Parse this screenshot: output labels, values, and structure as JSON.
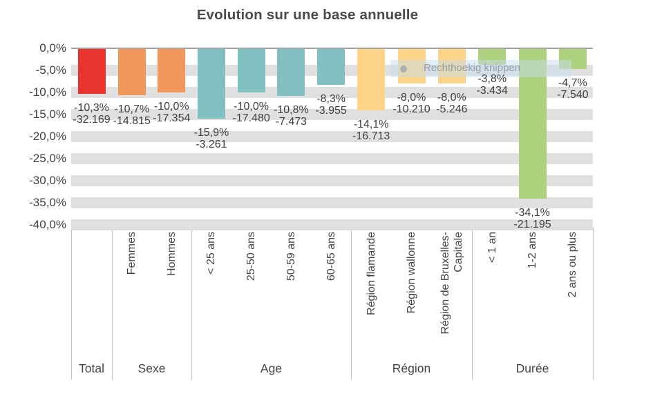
{
  "title": "Evolution sur une base annuelle",
  "overlay": {
    "text": "Rechthoekig knippen",
    "icon": "dot-icon"
  },
  "colors": {
    "total": "#e8342c",
    "sexe": "#f0975c",
    "age": "#81bfc1",
    "region": "#fbd389",
    "duree": "#aed17e",
    "grid_band": "#e0e0e0",
    "zero_line": "#a3a3a3",
    "separator": "#bfbfbf",
    "text": "#3d3d3d"
  },
  "chart_data": {
    "type": "bar",
    "title": "Evolution sur une base annuelle",
    "xlabel": "",
    "ylabel": "",
    "ylim": [
      -40,
      0
    ],
    "grid": "horizontal-bands",
    "legend": "none",
    "y_ticks": [
      {
        "value": 0,
        "label": "0,0%"
      },
      {
        "value": -5,
        "label": "-5,0%"
      },
      {
        "value": -10,
        "label": "-10,0%"
      },
      {
        "value": -15,
        "label": "-15,0%"
      },
      {
        "value": -20,
        "label": "-20,0%"
      },
      {
        "value": -25,
        "label": "-25,0%"
      },
      {
        "value": -30,
        "label": "-30,0%"
      },
      {
        "value": -35,
        "label": "-35,0%"
      },
      {
        "value": -40,
        "label": "-40,0%"
      }
    ],
    "groups": [
      {
        "label": "Total",
        "color": "#e8342c",
        "bars": [
          {
            "category": "",
            "pct": -10.3,
            "pct_label": "-10,3%",
            "abs_label": "-32.169"
          }
        ]
      },
      {
        "label": "Sexe",
        "color": "#f0975c",
        "bars": [
          {
            "category": "Femmes",
            "pct": -10.7,
            "pct_label": "-10,7%",
            "abs_label": "-14.815"
          },
          {
            "category": "Hommes",
            "pct": -10.0,
            "pct_label": "-10,0%",
            "abs_label": "-17.354"
          }
        ]
      },
      {
        "label": "Age",
        "color": "#81bfc1",
        "bars": [
          {
            "category": "< 25 ans",
            "pct": -15.9,
            "pct_label": "-15,9%",
            "abs_label": "-3.261"
          },
          {
            "category": "25-50 ans",
            "pct": -10.0,
            "pct_label": "-10,0%",
            "abs_label": "-17.480"
          },
          {
            "category": "50-59 ans",
            "pct": -10.8,
            "pct_label": "-10,8%",
            "abs_label": "-7.473"
          },
          {
            "category": "60-65 ans",
            "pct": -8.3,
            "pct_label": "-8,3%",
            "abs_label": "-3.955"
          }
        ]
      },
      {
        "label": "Région",
        "color": "#fbd389",
        "bars": [
          {
            "category": "Région flamande",
            "pct": -14.1,
            "pct_label": "-14,1%",
            "abs_label": "-16.713"
          },
          {
            "category": "Région wallonne",
            "pct": -8.0,
            "pct_label": "-8,0%",
            "abs_label": "-10.210"
          },
          {
            "category": "Région de Bruxelles-\nCapitale",
            "pct": -8.0,
            "pct_label": "-8,0%",
            "abs_label": "-5.246"
          }
        ]
      },
      {
        "label": "Durée",
        "color": "#aed17e",
        "bars": [
          {
            "category": "< 1 an",
            "pct": -3.8,
            "pct_label": "-3,8%",
            "abs_label": "-3.434"
          },
          {
            "category": "1-2 ans",
            "pct": -34.1,
            "pct_label": "-34,1%",
            "abs_label": "-21.195"
          },
          {
            "category": "2 ans ou plus",
            "pct": -4.7,
            "pct_label": "-4,7%",
            "abs_label": "-7.540"
          }
        ]
      }
    ]
  }
}
